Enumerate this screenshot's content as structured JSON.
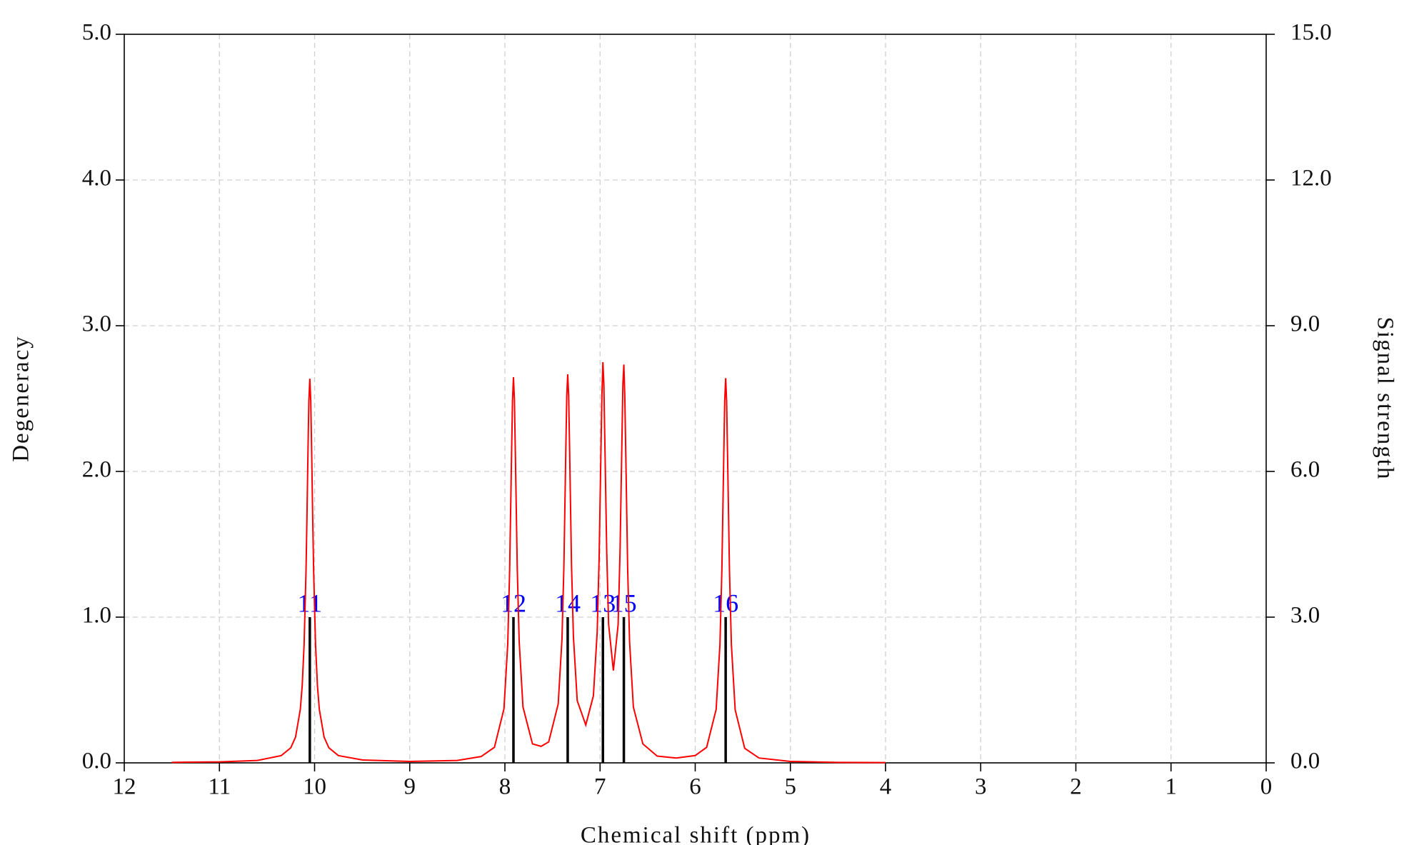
{
  "chart_data": {
    "type": "spectrum",
    "xlabel": "Chemical shift (ppm)",
    "ylabel": "Degeneracy",
    "y2label": "Signal strength",
    "xlim": [
      12,
      0
    ],
    "xticks": [
      12,
      11,
      10,
      9,
      8,
      7,
      6,
      5,
      4,
      3,
      2,
      1,
      0
    ],
    "ylim": [
      0,
      5
    ],
    "yticks": [
      {
        "value": 0,
        "label": "0.0"
      },
      {
        "value": 1,
        "label": "1.0"
      },
      {
        "value": 2,
        "label": "2.0"
      },
      {
        "value": 3,
        "label": "3.0"
      },
      {
        "value": 4,
        "label": "4.0"
      },
      {
        "value": 5,
        "label": "5.0"
      }
    ],
    "y2lim": [
      0,
      15
    ],
    "y2ticks": [
      {
        "value": 0,
        "label": "0.0"
      },
      {
        "value": 3,
        "label": "3.0"
      },
      {
        "value": 6,
        "label": "6.0"
      },
      {
        "value": 9,
        "label": "9.0"
      },
      {
        "value": 12,
        "label": "12.0"
      },
      {
        "value": 15,
        "label": "15.0"
      }
    ],
    "grid": true,
    "series": [
      {
        "kind": "line",
        "color": "#ff0000",
        "axis": "y2",
        "x": [
          11.5,
          11.0,
          10.6,
          10.35,
          10.25,
          10.2,
          10.15,
          10.13,
          10.11,
          10.09,
          10.08,
          10.07,
          10.06,
          10.05,
          10.04,
          10.03,
          10.02,
          10.01,
          9.99,
          9.97,
          9.95,
          9.9,
          9.85,
          9.75,
          9.5,
          9.0,
          8.5,
          8.25,
          8.11,
          8.01,
          7.97,
          7.95,
          7.93,
          7.92,
          7.91,
          7.9,
          7.89,
          7.87,
          7.85,
          7.81,
          7.71,
          7.62,
          7.54,
          7.44,
          7.4,
          7.38,
          7.36,
          7.35,
          7.34,
          7.33,
          7.32,
          7.3,
          7.28,
          7.24,
          7.15,
          7.07,
          7.03,
          7.01,
          6.99,
          6.98,
          6.97,
          6.96,
          6.95,
          6.93,
          6.91,
          6.86,
          6.81,
          6.79,
          6.77,
          6.76,
          6.75,
          6.74,
          6.73,
          6.71,
          6.69,
          6.65,
          6.55,
          6.4,
          6.2,
          6.0,
          5.88,
          5.78,
          5.74,
          5.72,
          5.7,
          5.69,
          5.68,
          5.67,
          5.66,
          5.64,
          5.62,
          5.58,
          5.48,
          5.33,
          5.0,
          4.5,
          4.0
        ],
        "values": [
          0.01,
          0.02,
          0.05,
          0.15,
          0.31,
          0.53,
          1.1,
          1.59,
          2.44,
          3.96,
          5.07,
          6.33,
          7.45,
          7.91,
          7.45,
          6.33,
          5.07,
          3.96,
          2.44,
          1.59,
          1.1,
          0.53,
          0.31,
          0.15,
          0.06,
          0.03,
          0.05,
          0.13,
          0.32,
          1.11,
          2.45,
          3.97,
          6.34,
          7.46,
          7.94,
          7.48,
          6.36,
          4.0,
          2.5,
          1.15,
          0.39,
          0.34,
          0.43,
          1.21,
          2.55,
          4.05,
          6.42,
          7.54,
          8.0,
          7.56,
          6.45,
          4.08,
          2.6,
          1.28,
          0.78,
          1.38,
          2.7,
          4.2,
          6.5,
          7.6,
          8.25,
          7.8,
          6.65,
          4.35,
          2.85,
          1.9,
          2.85,
          4.35,
          6.65,
          7.8,
          8.2,
          7.55,
          6.4,
          4.0,
          2.5,
          1.15,
          0.39,
          0.14,
          0.1,
          0.15,
          0.32,
          1.1,
          2.44,
          3.96,
          6.33,
          7.45,
          7.92,
          7.45,
          6.33,
          3.96,
          2.44,
          1.09,
          0.3,
          0.1,
          0.03,
          0.01,
          0.005
        ]
      },
      {
        "kind": "stick",
        "color": "#000000",
        "axis": "y",
        "label_color": "#0000ff",
        "x": [
          10.05,
          7.91,
          7.34,
          6.97,
          6.75,
          5.68
        ],
        "values": [
          1,
          1,
          1,
          1,
          1,
          1
        ],
        "labels": [
          "11",
          "12",
          "14",
          "13",
          "15",
          "16"
        ]
      }
    ]
  }
}
